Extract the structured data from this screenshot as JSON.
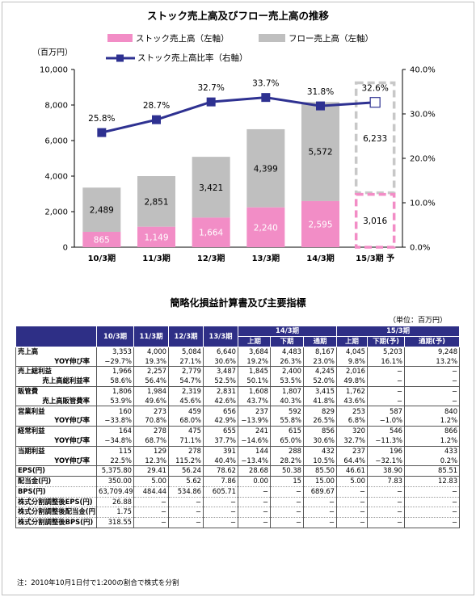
{
  "chart_data": {
    "type": "bar",
    "title": "ストック売上高及びフロー売上高の推移",
    "unit_label": "（百万円）",
    "categories": [
      "10/3期",
      "11/3期",
      "12/3期",
      "13/3期",
      "14/3期",
      "15/3期 予"
    ],
    "series": [
      {
        "name": "ストック売上高（左軸）",
        "kind": "stacked-bar",
        "axis": "left",
        "color": "#f28dc6",
        "values": [
          865,
          1149,
          1664,
          2240,
          2595,
          3016
        ],
        "labels": [
          "865",
          "1,149",
          "1,664",
          "2,240",
          "2,595",
          "3,016"
        ]
      },
      {
        "name": "フロー売上高（左軸）",
        "kind": "stacked-bar",
        "axis": "left",
        "color": "#bfbfbf",
        "values": [
          2489,
          2851,
          3421,
          4399,
          5572,
          6233
        ],
        "labels": [
          "2,489",
          "2,851",
          "3,421",
          "4,399",
          "5,572",
          "6,233"
        ]
      },
      {
        "name": "ストック売上高比率（右軸）",
        "kind": "line",
        "axis": "right",
        "color": "#2e3191",
        "values": [
          25.8,
          28.7,
          32.7,
          33.7,
          31.8,
          32.6
        ],
        "labels": [
          "25.8%",
          "28.7%",
          "32.7%",
          "33.7%",
          "31.8%",
          "32.6%"
        ]
      }
    ],
    "forecast_index": 5,
    "ylim": [
      0,
      10000
    ],
    "y_ticks": [
      "0",
      "2,000",
      "4,000",
      "6,000",
      "8,000",
      "10,000"
    ],
    "y2lim": [
      0,
      40
    ],
    "y2_ticks": [
      "0.0%",
      "10.0%",
      "20.0%",
      "30.0%",
      "40.0%"
    ],
    "grid": false,
    "legend_placement": "top"
  },
  "table": {
    "title": "簡略化損益計算書及び主要指標",
    "unit": "（単位：百万円）",
    "header": {
      "years": [
        "10/3期",
        "11/3期",
        "12/3期",
        "13/3期"
      ],
      "groups": [
        "14/3期",
        "15/3期"
      ],
      "sub14": [
        "上期",
        "下期",
        "通期"
      ],
      "sub15": [
        "上期",
        "下期(予)",
        "通期(予)"
      ]
    },
    "rows": [
      {
        "label": "売上高",
        "type": "main",
        "values": [
          "3,353",
          "4,000",
          "5,084",
          "6,640",
          "3,684",
          "4,483",
          "8,167",
          "4,045",
          "5,203",
          "9,248"
        ]
      },
      {
        "label": "YOY伸び率",
        "type": "sub",
        "values": [
          "−29.7%",
          "19.3%",
          "27.1%",
          "30.6%",
          "19.2%",
          "26.3%",
          "23.0%",
          "9.8%",
          "16.1%",
          "13.2%"
        ]
      },
      {
        "label": "売上総利益",
        "type": "main",
        "values": [
          "1,966",
          "2,257",
          "2,779",
          "3,487",
          "1,845",
          "2,400",
          "4,245",
          "2,016",
          "−",
          "−"
        ]
      },
      {
        "label": "売上高総利益率",
        "type": "sub",
        "values": [
          "58.6%",
          "56.4%",
          "54.7%",
          "52.5%",
          "50.1%",
          "53.5%",
          "52.0%",
          "49.8%",
          "−",
          "−"
        ]
      },
      {
        "label": "販管費",
        "type": "main",
        "values": [
          "1,806",
          "1,984",
          "2,319",
          "2,831",
          "1,608",
          "1,807",
          "3,415",
          "1,762",
          "−",
          "−"
        ]
      },
      {
        "label": "売上高販管費率",
        "type": "sub",
        "values": [
          "53.9%",
          "49.6%",
          "45.6%",
          "42.6%",
          "43.7%",
          "40.3%",
          "41.8%",
          "43.6%",
          "−",
          "−"
        ]
      },
      {
        "label": "営業利益",
        "type": "main",
        "values": [
          "160",
          "273",
          "459",
          "656",
          "237",
          "592",
          "829",
          "253",
          "587",
          "840"
        ]
      },
      {
        "label": "YOY伸び率",
        "type": "sub",
        "values": [
          "−33.8%",
          "70.8%",
          "68.0%",
          "42.9%",
          "−13.9%",
          "55.8%",
          "26.5%",
          "6.8%",
          "−1.0%",
          "1.2%"
        ]
      },
      {
        "label": "経常利益",
        "type": "main",
        "values": [
          "164",
          "278",
          "475",
          "655",
          "241",
          "615",
          "856",
          "320",
          "546",
          "866"
        ]
      },
      {
        "label": "YOY伸び率",
        "type": "sub",
        "values": [
          "−34.8%",
          "68.7%",
          "71.1%",
          "37.7%",
          "−14.6%",
          "65.0%",
          "30.6%",
          "32.7%",
          "−11.3%",
          "1.2%"
        ]
      },
      {
        "label": "当期利益",
        "type": "main",
        "values": [
          "115",
          "129",
          "278",
          "391",
          "144",
          "288",
          "432",
          "237",
          "196",
          "433"
        ]
      },
      {
        "label": "YOY伸び率",
        "type": "sub",
        "values": [
          "22.5%",
          "12.3%",
          "115.2%",
          "40.4%",
          "−13.4%",
          "28.2%",
          "10.5%",
          "64.4%",
          "−32.1%",
          "0.2%"
        ]
      },
      {
        "label": "EPS(円)",
        "type": "main",
        "values": [
          "5,375.80",
          "29.41",
          "56.24",
          "78.62",
          "28.68",
          "50.38",
          "85.50",
          "46.61",
          "38.90",
          "85.51"
        ]
      },
      {
        "label": "配当金(円)",
        "type": "plain",
        "values": [
          "350.00",
          "5.00",
          "5.62",
          "7.86",
          "0.00",
          "15",
          "15.00",
          "5.00",
          "7.83",
          "12.83"
        ]
      },
      {
        "label": "BPS(円)",
        "type": "plain",
        "values": [
          "63,709.49",
          "484.44",
          "534.86",
          "605.71",
          "−",
          "−",
          "689.67",
          "−",
          "−",
          "−"
        ]
      },
      {
        "label": "株式分割調整後EPS(円)",
        "type": "plain",
        "values": [
          "26.88",
          "−",
          "−",
          "−",
          "−",
          "−",
          "−",
          "−",
          "−",
          "−"
        ]
      },
      {
        "label": "株式分割調整後配当金(円)",
        "type": "plain",
        "values": [
          "1.75",
          "−",
          "−",
          "−",
          "−",
          "−",
          "−",
          "−",
          "−",
          "−"
        ]
      },
      {
        "label": "株式分割調整後BPS(円)",
        "type": "plain",
        "values": [
          "318.55",
          "−",
          "−",
          "−",
          "−",
          "−",
          "−",
          "−",
          "−",
          "−"
        ]
      }
    ]
  },
  "note": "注：2010年10月1日付で1:200の割合で株式を分割"
}
